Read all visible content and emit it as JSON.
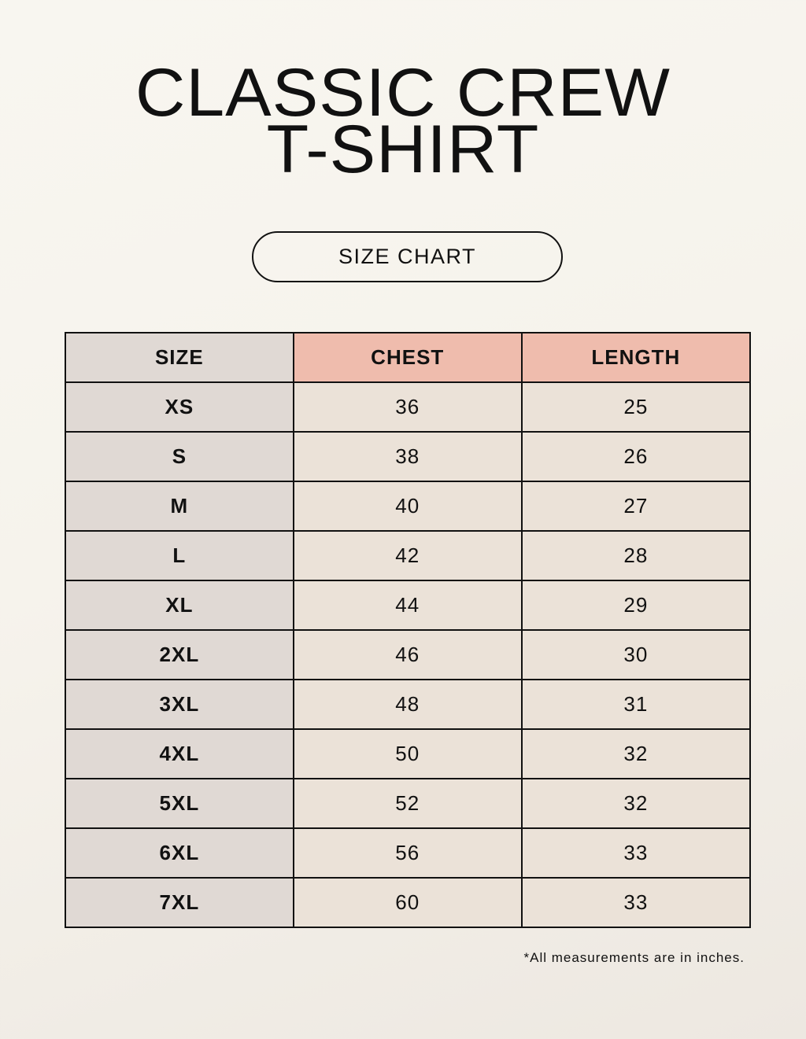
{
  "title": {
    "line1": "CLASSIC CREW",
    "line2": "T-SHIRT"
  },
  "badge": "SIZE CHART",
  "table": {
    "headers": [
      "SIZE",
      "CHEST",
      "LENGTH"
    ],
    "rows": [
      [
        "XS",
        "36",
        "25"
      ],
      [
        "S",
        "38",
        "26"
      ],
      [
        "M",
        "40",
        "27"
      ],
      [
        "L",
        "42",
        "28"
      ],
      [
        "XL",
        "44",
        "29"
      ],
      [
        "2XL",
        "46",
        "30"
      ],
      [
        "3XL",
        "48",
        "31"
      ],
      [
        "4XL",
        "50",
        "32"
      ],
      [
        "5XL",
        "52",
        "32"
      ],
      [
        "6XL",
        "56",
        "33"
      ],
      [
        "7XL",
        "60",
        "33"
      ]
    ]
  },
  "footnote": "*All measurements are in inches.",
  "colors": {
    "background": "#f7f4ee",
    "size_column": "#e0d9d4",
    "header_accent": "#efbcad",
    "cell": "#ebe2d8"
  }
}
